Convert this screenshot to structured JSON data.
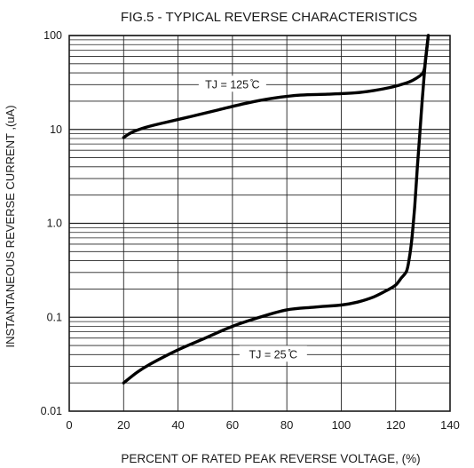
{
  "chart_data": {
    "type": "line",
    "title": "FIG.5 - TYPICAL REVERSE CHARACTERISTICS",
    "xlabel": "PERCENT OF RATED PEAK REVERSE VOLTAGE, (%)",
    "ylabel": "INSTANTANEOUS REVERSE CURRENT ,(uA)",
    "x_scale": "linear",
    "y_scale": "log",
    "xlim": [
      0,
      140
    ],
    "ylim": [
      0.01,
      100
    ],
    "grid": true,
    "x_ticks": [
      "0",
      "20",
      "40",
      "60",
      "80",
      "100",
      "120",
      "140"
    ],
    "y_ticks": [
      "0.01",
      "0.1",
      "1.0",
      "10",
      "100"
    ],
    "series": [
      {
        "name": "TJ = 125 ̊C",
        "x": [
          20,
          23,
          28,
          35,
          45,
          55,
          65,
          75,
          85,
          95,
          105,
          112,
          118,
          122,
          126,
          130,
          131,
          132
        ],
        "y": [
          8.2,
          9.3,
          10.5,
          11.8,
          13.8,
          16.2,
          19,
          21.5,
          23.2,
          23.7,
          24.5,
          26,
          28,
          30,
          33,
          40,
          55,
          100
        ]
      },
      {
        "name": "TJ = 25 ̊C",
        "x": [
          20,
          25,
          30,
          40,
          50,
          60,
          70,
          80,
          90,
          100,
          106,
          112,
          117,
          120,
          122,
          124,
          125,
          126,
          127,
          128,
          129,
          130,
          131,
          132
        ],
        "y": [
          0.02,
          0.026,
          0.032,
          0.045,
          0.06,
          0.08,
          0.1,
          0.12,
          0.128,
          0.135,
          0.145,
          0.165,
          0.195,
          0.22,
          0.26,
          0.31,
          0.42,
          0.7,
          1.5,
          4,
          10,
          25,
          55,
          100
        ]
      }
    ]
  }
}
